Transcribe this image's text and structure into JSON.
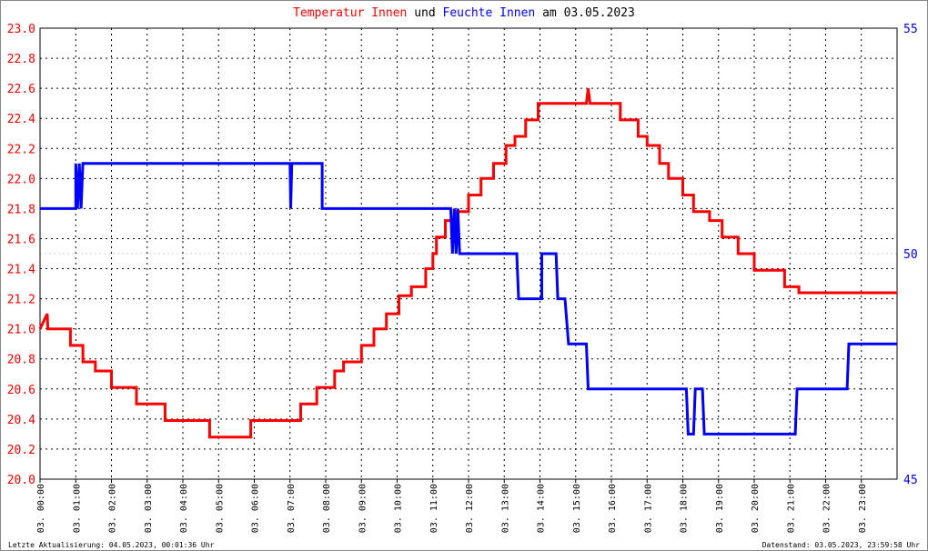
{
  "title": {
    "part1": "Temperatur Innen",
    "part2": "und",
    "part3": "Feuchte Innen",
    "part4": "am 03.05.2023",
    "color1": "#ff0000",
    "color3": "#0000ff"
  },
  "footer": {
    "left": "Letzte Aktualisierung: 04.05.2023, 00:01:36 Uhr",
    "right": "Datenstand: 03.05.2023, 23:59:58 Uhr"
  },
  "chart_data": {
    "type": "line",
    "title": "Temperatur Innen und Feuchte Innen am 03.05.2023",
    "x_ticks": [
      "03. 00:00",
      "03. 01:00",
      "03. 02:00",
      "03. 03:00",
      "03. 04:00",
      "03. 05:00",
      "03. 06:00",
      "03. 07:00",
      "03. 08:00",
      "03. 09:00",
      "03. 10:00",
      "03. 11:00",
      "03. 12:00",
      "03. 13:00",
      "03. 14:00",
      "03. 15:00",
      "03. 16:00",
      "03. 17:00",
      "03. 18:00",
      "03. 19:00",
      "03. 20:00",
      "03. 21:00",
      "03. 22:00",
      "03. 23:00"
    ],
    "xlim": [
      0,
      24
    ],
    "y_left": {
      "ylim": [
        20.0,
        23.0
      ],
      "ticks": [
        "20.0",
        "20.2",
        "20.4",
        "20.6",
        "20.8",
        "21.0",
        "21.2",
        "21.4",
        "21.6",
        "21.8",
        "22.0",
        "22.2",
        "22.4",
        "22.6",
        "22.8",
        "23.0"
      ],
      "color": "#ff0000"
    },
    "y_right": {
      "ylim": [
        45,
        55
      ],
      "ticks": [
        "45",
        "50",
        "55"
      ],
      "color": "#0000ff"
    },
    "grid": true,
    "series": [
      {
        "name": "Temperatur Innen",
        "axis": "left",
        "color": "#ff0000",
        "points": [
          [
            0,
            21.0
          ],
          [
            0.2,
            21.1
          ],
          [
            0.22,
            21.0
          ],
          [
            0.85,
            21.0
          ],
          [
            0.85,
            20.89
          ],
          [
            1.2,
            20.89
          ],
          [
            1.2,
            20.78
          ],
          [
            1.55,
            20.78
          ],
          [
            1.55,
            20.72
          ],
          [
            2.0,
            20.72
          ],
          [
            2.0,
            20.61
          ],
          [
            2.7,
            20.61
          ],
          [
            2.7,
            20.5
          ],
          [
            3.5,
            20.5
          ],
          [
            3.5,
            20.39
          ],
          [
            4.75,
            20.39
          ],
          [
            4.75,
            20.28
          ],
          [
            5.9,
            20.28
          ],
          [
            5.9,
            20.39
          ],
          [
            7.3,
            20.39
          ],
          [
            7.3,
            20.5
          ],
          [
            7.75,
            20.5
          ],
          [
            7.75,
            20.61
          ],
          [
            8.25,
            20.61
          ],
          [
            8.25,
            20.72
          ],
          [
            8.5,
            20.72
          ],
          [
            8.5,
            20.78
          ],
          [
            9.0,
            20.78
          ],
          [
            9.0,
            20.89
          ],
          [
            9.35,
            20.89
          ],
          [
            9.35,
            21.0
          ],
          [
            9.7,
            21.0
          ],
          [
            9.7,
            21.1
          ],
          [
            10.05,
            21.1
          ],
          [
            10.05,
            21.22
          ],
          [
            10.4,
            21.22
          ],
          [
            10.4,
            21.28
          ],
          [
            10.8,
            21.28
          ],
          [
            10.8,
            21.4
          ],
          [
            11.0,
            21.4
          ],
          [
            11.0,
            21.5
          ],
          [
            11.1,
            21.5
          ],
          [
            11.1,
            21.61
          ],
          [
            11.35,
            21.61
          ],
          [
            11.35,
            21.72
          ],
          [
            11.65,
            21.72
          ],
          [
            11.65,
            21.78
          ],
          [
            12.0,
            21.78
          ],
          [
            12.0,
            21.89
          ],
          [
            12.35,
            21.89
          ],
          [
            12.35,
            22.0
          ],
          [
            12.7,
            22.0
          ],
          [
            12.7,
            22.1
          ],
          [
            13.05,
            22.1
          ],
          [
            13.05,
            22.22
          ],
          [
            13.3,
            22.22
          ],
          [
            13.3,
            22.28
          ],
          [
            13.6,
            22.28
          ],
          [
            13.6,
            22.39
          ],
          [
            13.95,
            22.39
          ],
          [
            13.95,
            22.5
          ],
          [
            15.3,
            22.5
          ],
          [
            15.35,
            22.6
          ],
          [
            15.4,
            22.5
          ],
          [
            16.25,
            22.5
          ],
          [
            16.25,
            22.39
          ],
          [
            16.75,
            22.39
          ],
          [
            16.75,
            22.28
          ],
          [
            17.0,
            22.28
          ],
          [
            17.0,
            22.22
          ],
          [
            17.35,
            22.22
          ],
          [
            17.35,
            22.1
          ],
          [
            17.6,
            22.1
          ],
          [
            17.6,
            22.0
          ],
          [
            18.0,
            22.0
          ],
          [
            18.0,
            21.89
          ],
          [
            18.3,
            21.89
          ],
          [
            18.3,
            21.78
          ],
          [
            18.75,
            21.78
          ],
          [
            18.75,
            21.72
          ],
          [
            19.1,
            21.72
          ],
          [
            19.1,
            21.61
          ],
          [
            19.55,
            21.61
          ],
          [
            19.55,
            21.5
          ],
          [
            20.0,
            21.5
          ],
          [
            20.0,
            21.39
          ],
          [
            20.85,
            21.39
          ],
          [
            20.85,
            21.28
          ],
          [
            21.25,
            21.28
          ],
          [
            21.25,
            21.24
          ],
          [
            24,
            21.24
          ]
        ]
      },
      {
        "name": "Feuchte Innen",
        "axis": "right",
        "color": "#0000ff",
        "points": [
          [
            0,
            51.0
          ],
          [
            1.0,
            51.0
          ],
          [
            1.0,
            52.0
          ],
          [
            1.05,
            51.0
          ],
          [
            1.1,
            52.0
          ],
          [
            1.15,
            51.0
          ],
          [
            1.2,
            52.0
          ],
          [
            7.0,
            52.0
          ],
          [
            7.02,
            51.0
          ],
          [
            7.05,
            52.0
          ],
          [
            7.9,
            52.0
          ],
          [
            7.9,
            51.0
          ],
          [
            11.5,
            51.0
          ],
          [
            11.55,
            50.0
          ],
          [
            11.6,
            51.0
          ],
          [
            11.65,
            50.0
          ],
          [
            11.7,
            51.0
          ],
          [
            11.75,
            50.0
          ],
          [
            13.35,
            50.0
          ],
          [
            13.4,
            49.0
          ],
          [
            14.05,
            49.0
          ],
          [
            14.05,
            50.0
          ],
          [
            14.45,
            50.0
          ],
          [
            14.5,
            49.0
          ],
          [
            14.7,
            49.0
          ],
          [
            14.8,
            48.0
          ],
          [
            15.3,
            48.0
          ],
          [
            15.35,
            47.0
          ],
          [
            18.1,
            47.0
          ],
          [
            18.15,
            46.0
          ],
          [
            18.3,
            46.0
          ],
          [
            18.35,
            47.0
          ],
          [
            18.55,
            47.0
          ],
          [
            18.6,
            46.0
          ],
          [
            21.15,
            46.0
          ],
          [
            21.2,
            47.0
          ],
          [
            22.6,
            47.0
          ],
          [
            22.65,
            48.0
          ],
          [
            23.25,
            48.0
          ],
          [
            24,
            48.0
          ]
        ]
      }
    ]
  }
}
